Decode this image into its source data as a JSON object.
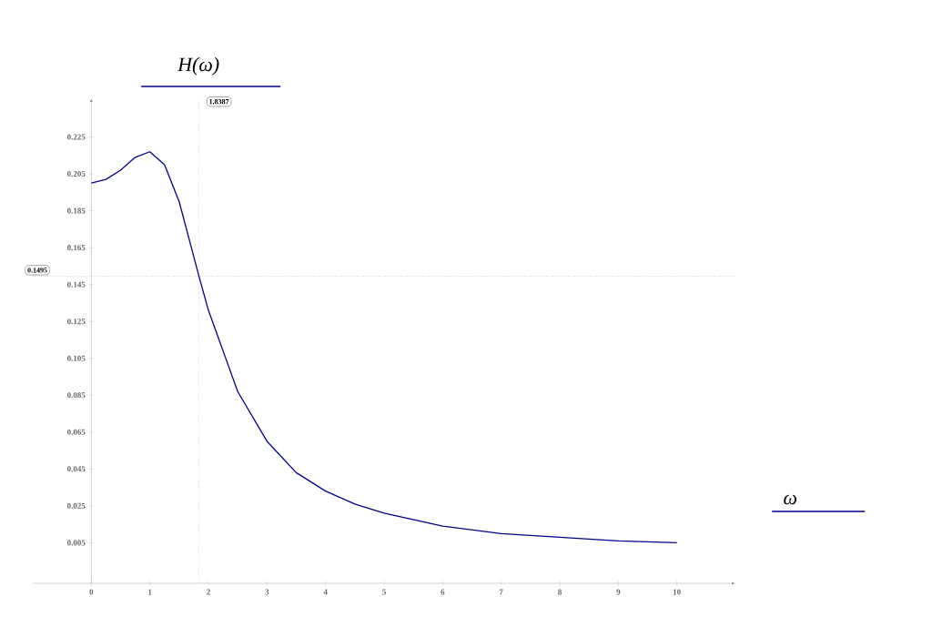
{
  "chart_data": {
    "type": "line",
    "xlabel": "ω",
    "ylabel": "H(ω)",
    "x": [
      0,
      0.25,
      0.5,
      0.75,
      1,
      1.25,
      1.5,
      1.8387,
      2,
      2.5,
      3,
      3.5,
      4,
      4.5,
      5,
      6,
      7,
      8,
      9,
      10
    ],
    "series": [
      {
        "color": "#00008b",
        "values": [
          0.2,
          0.202,
          0.207,
          0.214,
          0.217,
          0.21,
          0.19,
          0.1495,
          0.131,
          0.087,
          0.06,
          0.043,
          0.033,
          0.026,
          0.021,
          0.014,
          0.01,
          0.008,
          0.006,
          0.005
        ]
      }
    ],
    "xlim": [
      -1,
      11
    ],
    "ylim": [
      -0.017,
      0.246
    ],
    "xticks": [
      0,
      1,
      2,
      3,
      4,
      5,
      6,
      7,
      8,
      9,
      10
    ],
    "yticks": [
      0.005,
      0.025,
      0.045,
      0.065,
      0.085,
      0.105,
      0.125,
      0.145,
      0.165,
      0.185,
      0.205,
      0.225
    ],
    "ref_lines": [
      {
        "axis": "x",
        "value": 1.8387,
        "label": "1.8387",
        "line_style": "dotted"
      },
      {
        "axis": "y",
        "value": 0.1495,
        "label": "0.1495",
        "line_style": "dotted"
      }
    ],
    "marker": "none",
    "line_style": "solid"
  }
}
